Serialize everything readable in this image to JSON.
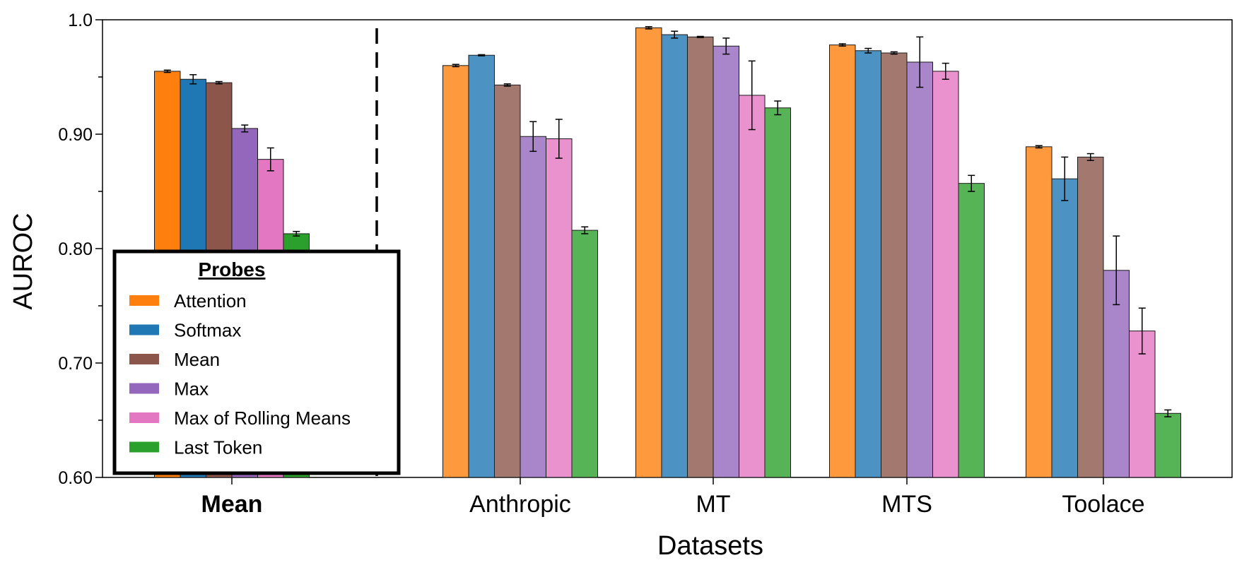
{
  "chart_data": {
    "type": "bar",
    "ylabel": "AUROC",
    "xlabel": "Datasets",
    "ylim": [
      0.6,
      1.0
    ],
    "yticks": [
      "0.60",
      "0.70",
      "0.80",
      "0.90",
      "1.0"
    ],
    "categories": [
      "Mean",
      "Anthropic",
      "MT",
      "MTS",
      "Toolace"
    ],
    "legend": {
      "title": "Probes",
      "placement": "lower-left"
    },
    "colors": [
      "#ff7f0e",
      "#1f77b4",
      "#8c564b",
      "#9467bd",
      "#e377c2",
      "#2ca02c"
    ],
    "series": [
      {
        "name": "Attention",
        "values": [
          0.955,
          0.96,
          0.993,
          0.978,
          0.889
        ],
        "errors": [
          0.001,
          0.001,
          0.001,
          0.001,
          0.001
        ]
      },
      {
        "name": "Softmax",
        "values": [
          0.948,
          0.969,
          0.987,
          0.973,
          0.861
        ],
        "errors": [
          0.004,
          0.0005,
          0.003,
          0.002,
          0.019
        ]
      },
      {
        "name": "Mean",
        "values": [
          0.945,
          0.943,
          0.985,
          0.971,
          0.88
        ],
        "errors": [
          0.001,
          0.001,
          0.0005,
          0.001,
          0.003
        ]
      },
      {
        "name": "Max",
        "values": [
          0.905,
          0.898,
          0.977,
          0.963,
          0.781
        ],
        "errors": [
          0.003,
          0.013,
          0.007,
          0.022,
          0.03
        ]
      },
      {
        "name": "Max of Rolling Means",
        "values": [
          0.878,
          0.896,
          0.934,
          0.955,
          0.728
        ],
        "errors": [
          0.01,
          0.017,
          0.03,
          0.007,
          0.02
        ]
      },
      {
        "name": "Last Token",
        "values": [
          0.813,
          0.816,
          0.923,
          0.857,
          0.656
        ],
        "errors": [
          0.002,
          0.003,
          0.006,
          0.007,
          0.003
        ]
      }
    ],
    "divider_after_category": "Mean",
    "annotations": []
  }
}
